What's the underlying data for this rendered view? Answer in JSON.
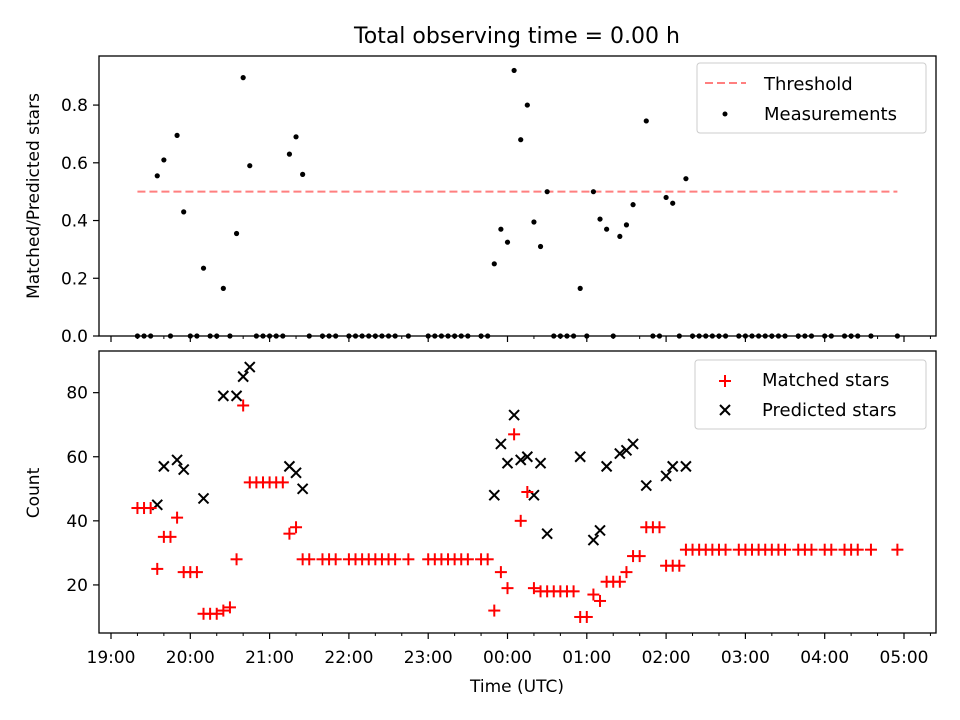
{
  "figure": {
    "title": "Total observing time = 0.00 h",
    "xlabel": "Time (UTC)",
    "x_tick_labels": [
      "19:00",
      "20:00",
      "21:00",
      "22:00",
      "23:00",
      "00:00",
      "01:00",
      "02:00",
      "03:00",
      "04:00",
      "05:00"
    ]
  },
  "chart_data": [
    {
      "type": "scatter",
      "ylabel": "Matched/Predicted stars",
      "xlim": [
        "19:00",
        "05:25"
      ],
      "ylim": [
        0,
        0.97
      ],
      "y_ticks": [
        "0.0",
        "0.2",
        "0.4",
        "0.6",
        "0.8"
      ],
      "legend": {
        "placement": "top-right",
        "entries": [
          {
            "label": "Threshold",
            "style": "dashed-line",
            "color": "#ff7f7f"
          },
          {
            "label": "Measurements",
            "style": "dot",
            "color": "#000000"
          }
        ]
      },
      "threshold": {
        "y": 0.5,
        "x_start": "19:20",
        "x_end": "04:55",
        "color": "#ff7f7f"
      },
      "series": [
        {
          "name": "Measurements",
          "color": "#000000",
          "points": [
            [
              "19:20",
              0
            ],
            [
              "19:25",
              0
            ],
            [
              "19:30",
              0
            ],
            [
              "19:35",
              0.555
            ],
            [
              "19:40",
              0.61
            ],
            [
              "19:45",
              0
            ],
            [
              "19:50",
              0.695
            ],
            [
              "19:55",
              0.43
            ],
            [
              "20:00",
              0
            ],
            [
              "20:05",
              0
            ],
            [
              "20:10",
              0.235
            ],
            [
              "20:15",
              0
            ],
            [
              "20:20",
              0
            ],
            [
              "20:25",
              0.165
            ],
            [
              "20:30",
              0
            ],
            [
              "20:35",
              0.355
            ],
            [
              "20:40",
              0.895
            ],
            [
              "20:45",
              0.59
            ],
            [
              "20:50",
              0
            ],
            [
              "20:55",
              0
            ],
            [
              "21:00",
              0
            ],
            [
              "21:05",
              0
            ],
            [
              "21:10",
              0
            ],
            [
              "21:15",
              0.63
            ],
            [
              "21:20",
              0.69
            ],
            [
              "21:25",
              0.56
            ],
            [
              "21:30",
              0
            ],
            [
              "21:40",
              0
            ],
            [
              "21:45",
              0
            ],
            [
              "21:50",
              0
            ],
            [
              "22:00",
              0
            ],
            [
              "22:05",
              0
            ],
            [
              "22:10",
              0
            ],
            [
              "22:15",
              0
            ],
            [
              "22:20",
              0
            ],
            [
              "22:25",
              0
            ],
            [
              "22:30",
              0
            ],
            [
              "22:35",
              0
            ],
            [
              "22:45",
              0
            ],
            [
              "23:00",
              0
            ],
            [
              "23:05",
              0
            ],
            [
              "23:10",
              0
            ],
            [
              "23:15",
              0
            ],
            [
              "23:20",
              0
            ],
            [
              "23:25",
              0
            ],
            [
              "23:30",
              0
            ],
            [
              "23:40",
              0
            ],
            [
              "23:45",
              0
            ],
            [
              "23:50",
              0.25
            ],
            [
              "23:55",
              0.37
            ],
            [
              "00:00",
              0.325
            ],
            [
              "00:05",
              0.92
            ],
            [
              "00:10",
              0.68
            ],
            [
              "00:15",
              0.8
            ],
            [
              "00:20",
              0.395
            ],
            [
              "00:25",
              0.31
            ],
            [
              "00:30",
              0.5
            ],
            [
              "00:35",
              0
            ],
            [
              "00:40",
              0
            ],
            [
              "00:45",
              0
            ],
            [
              "00:50",
              0
            ],
            [
              "00:55",
              0.165
            ],
            [
              "01:00",
              0
            ],
            [
              "01:05",
              0.5
            ],
            [
              "01:10",
              0.405
            ],
            [
              "01:15",
              0.37
            ],
            [
              "01:20",
              0
            ],
            [
              "01:25",
              0.345
            ],
            [
              "01:30",
              0.385
            ],
            [
              "01:35",
              0.455
            ],
            [
              "01:45",
              0.745
            ],
            [
              "01:50",
              0
            ],
            [
              "01:55",
              0
            ],
            [
              "02:00",
              0.48
            ],
            [
              "02:05",
              0.46
            ],
            [
              "02:10",
              0
            ],
            [
              "02:15",
              0.545
            ],
            [
              "02:20",
              0
            ],
            [
              "02:25",
              0
            ],
            [
              "02:30",
              0
            ],
            [
              "02:35",
              0
            ],
            [
              "02:40",
              0
            ],
            [
              "02:45",
              0
            ],
            [
              "02:55",
              0
            ],
            [
              "03:00",
              0
            ],
            [
              "03:05",
              0
            ],
            [
              "03:10",
              0
            ],
            [
              "03:15",
              0
            ],
            [
              "03:20",
              0
            ],
            [
              "03:25",
              0
            ],
            [
              "03:30",
              0
            ],
            [
              "03:40",
              0
            ],
            [
              "03:45",
              0
            ],
            [
              "03:50",
              0
            ],
            [
              "04:00",
              0
            ],
            [
              "04:05",
              0
            ],
            [
              "04:15",
              0
            ],
            [
              "04:20",
              0
            ],
            [
              "04:25",
              0
            ],
            [
              "04:35",
              0
            ],
            [
              "04:55",
              0
            ]
          ]
        }
      ]
    },
    {
      "type": "scatter",
      "ylabel": "Count",
      "xlim": [
        "19:00",
        "05:25"
      ],
      "ylim": [
        5,
        93
      ],
      "y_ticks": [
        "20",
        "40",
        "60",
        "80"
      ],
      "legend": {
        "placement": "top-right",
        "entries": [
          {
            "label": "Matched stars",
            "style": "plus",
            "color": "#ff0000"
          },
          {
            "label": "Predicted stars",
            "style": "cross",
            "color": "#000000"
          }
        ]
      },
      "series": [
        {
          "name": "Matched stars",
          "marker": "plus",
          "color": "#ff0000",
          "points": [
            [
              "19:20",
              44
            ],
            [
              "19:25",
              44
            ],
            [
              "19:30",
              44
            ],
            [
              "19:35",
              25
            ],
            [
              "19:40",
              35
            ],
            [
              "19:45",
              35
            ],
            [
              "19:50",
              41
            ],
            [
              "19:55",
              24
            ],
            [
              "20:00",
              24
            ],
            [
              "20:05",
              24
            ],
            [
              "20:10",
              11
            ],
            [
              "20:15",
              11
            ],
            [
              "20:20",
              11
            ],
            [
              "20:25",
              12
            ],
            [
              "20:30",
              13
            ],
            [
              "20:35",
              28
            ],
            [
              "20:40",
              76
            ],
            [
              "20:45",
              52
            ],
            [
              "20:50",
              52
            ],
            [
              "20:55",
              52
            ],
            [
              "21:00",
              52
            ],
            [
              "21:05",
              52
            ],
            [
              "21:10",
              52
            ],
            [
              "21:15",
              36
            ],
            [
              "21:20",
              38
            ],
            [
              "21:25",
              28
            ],
            [
              "21:30",
              28
            ],
            [
              "21:40",
              28
            ],
            [
              "21:45",
              28
            ],
            [
              "21:50",
              28
            ],
            [
              "22:00",
              28
            ],
            [
              "22:05",
              28
            ],
            [
              "22:10",
              28
            ],
            [
              "22:15",
              28
            ],
            [
              "22:20",
              28
            ],
            [
              "22:25",
              28
            ],
            [
              "22:30",
              28
            ],
            [
              "22:35",
              28
            ],
            [
              "22:45",
              28
            ],
            [
              "23:00",
              28
            ],
            [
              "23:05",
              28
            ],
            [
              "23:10",
              28
            ],
            [
              "23:15",
              28
            ],
            [
              "23:20",
              28
            ],
            [
              "23:25",
              28
            ],
            [
              "23:30",
              28
            ],
            [
              "23:40",
              28
            ],
            [
              "23:45",
              28
            ],
            [
              "23:50",
              12
            ],
            [
              "23:55",
              24
            ],
            [
              "00:00",
              19
            ],
            [
              "00:05",
              67
            ],
            [
              "00:10",
              40
            ],
            [
              "00:15",
              49
            ],
            [
              "00:20",
              19
            ],
            [
              "00:25",
              18
            ],
            [
              "00:30",
              18
            ],
            [
              "00:35",
              18
            ],
            [
              "00:40",
              18
            ],
            [
              "00:45",
              18
            ],
            [
              "00:50",
              18
            ],
            [
              "00:55",
              10
            ],
            [
              "01:00",
              10
            ],
            [
              "01:05",
              17
            ],
            [
              "01:10",
              15
            ],
            [
              "01:15",
              21
            ],
            [
              "01:20",
              21
            ],
            [
              "01:25",
              21
            ],
            [
              "01:30",
              24
            ],
            [
              "01:35",
              29
            ],
            [
              "01:40",
              29
            ],
            [
              "01:45",
              38
            ],
            [
              "01:50",
              38
            ],
            [
              "01:55",
              38
            ],
            [
              "02:00",
              26
            ],
            [
              "02:05",
              26
            ],
            [
              "02:10",
              26
            ],
            [
              "02:15",
              31
            ],
            [
              "02:20",
              31
            ],
            [
              "02:25",
              31
            ],
            [
              "02:30",
              31
            ],
            [
              "02:35",
              31
            ],
            [
              "02:40",
              31
            ],
            [
              "02:45",
              31
            ],
            [
              "02:55",
              31
            ],
            [
              "03:00",
              31
            ],
            [
              "03:05",
              31
            ],
            [
              "03:10",
              31
            ],
            [
              "03:15",
              31
            ],
            [
              "03:20",
              31
            ],
            [
              "03:25",
              31
            ],
            [
              "03:30",
              31
            ],
            [
              "03:40",
              31
            ],
            [
              "03:45",
              31
            ],
            [
              "03:50",
              31
            ],
            [
              "04:00",
              31
            ],
            [
              "04:05",
              31
            ],
            [
              "04:15",
              31
            ],
            [
              "04:20",
              31
            ],
            [
              "04:25",
              31
            ],
            [
              "04:35",
              31
            ],
            [
              "04:55",
              31
            ]
          ]
        },
        {
          "name": "Predicted stars",
          "marker": "cross",
          "color": "#000000",
          "points": [
            [
              "19:35",
              45
            ],
            [
              "19:40",
              57
            ],
            [
              "19:50",
              59
            ],
            [
              "19:55",
              56
            ],
            [
              "20:10",
              47
            ],
            [
              "20:25",
              79
            ],
            [
              "20:35",
              79
            ],
            [
              "20:40",
              85
            ],
            [
              "20:45",
              88
            ],
            [
              "21:15",
              57
            ],
            [
              "21:20",
              55
            ],
            [
              "21:25",
              50
            ],
            [
              "23:50",
              48
            ],
            [
              "23:55",
              64
            ],
            [
              "00:00",
              58
            ],
            [
              "00:05",
              73
            ],
            [
              "00:10",
              59
            ],
            [
              "00:15",
              60
            ],
            [
              "00:20",
              48
            ],
            [
              "00:25",
              58
            ],
            [
              "00:30",
              36
            ],
            [
              "00:55",
              60
            ],
            [
              "01:05",
              34
            ],
            [
              "01:10",
              37
            ],
            [
              "01:15",
              57
            ],
            [
              "01:25",
              61
            ],
            [
              "01:30",
              62
            ],
            [
              "01:35",
              64
            ],
            [
              "01:45",
              51
            ],
            [
              "02:00",
              54
            ],
            [
              "02:05",
              57
            ],
            [
              "02:15",
              57
            ]
          ]
        }
      ]
    }
  ]
}
